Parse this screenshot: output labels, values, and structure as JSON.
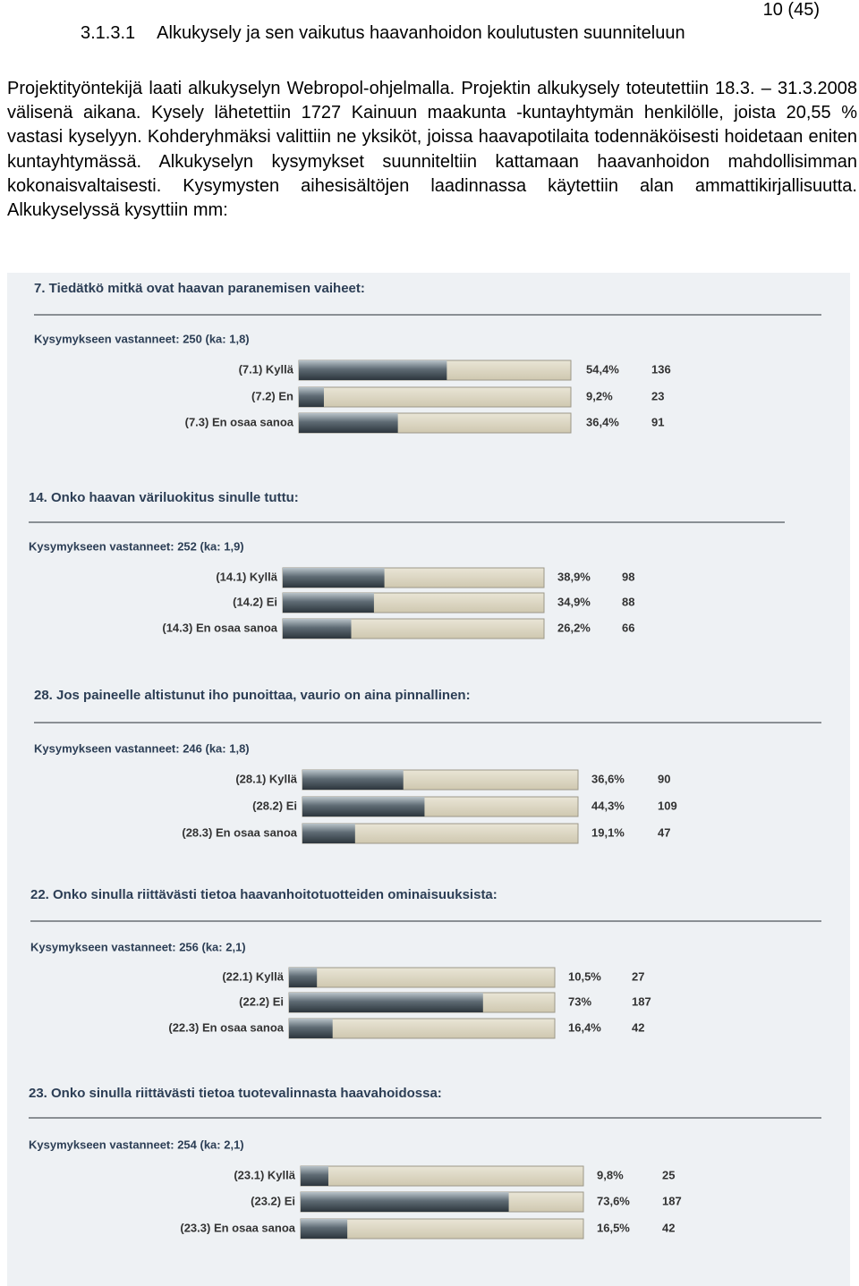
{
  "header": {
    "page_number": "10 (45)",
    "section_number": "3.1.3.1",
    "section_title": "Alkukysely ja sen vaikutus haavanhoidon koulutusten suunniteluun"
  },
  "paragraph": "Projektityöntekijä laati alkukyselyn Webropol-ohjelmalla. Projektin alkukysely toteutettiin 18.3. – 31.3.2008 välisenä aikana. Kysely lähetettiin 1727 Kainuun maakunta -kuntayhtymän henkilölle, joista 20,55 % vastasi kyselyyn. Kohderyhmäksi valittiin ne yksiköt, joissa haavapotilaita todennäköisesti hoidetaan eniten kuntayhtymässä. Alkukyselyn kysymykset suunniteltiin kattamaan haavanhoidon mahdollisimman kokonaisvaltaisesti. Kysymysten aihesisältöjen laadinnassa käytettiin alan ammattikirjallisuutta. Alkukyselyssä kysyttiin mm:",
  "questions": [
    {
      "title": "7. Tiedätkö mitkä ovat haavan paranemisen vaiheet:",
      "respondents": "Kysymykseen vastanneet: 250 (ka: 1,8)",
      "options": [
        {
          "label": "(7.1) Kyllä",
          "percent": 54.4,
          "percent_label": "54,4%",
          "count": 136
        },
        {
          "label": "(7.2) En",
          "percent": 9.2,
          "percent_label": "9,2%",
          "count": 23
        },
        {
          "label": "(7.3) En osaa sanoa",
          "percent": 36.4,
          "percent_label": "36,4%",
          "count": 91
        }
      ]
    },
    {
      "title": "14. Onko haavan väriluokitus sinulle tuttu:",
      "respondents": "Kysymykseen vastanneet: 252 (ka: 1,9)",
      "options": [
        {
          "label": "(14.1) Kyllä",
          "percent": 38.9,
          "percent_label": "38,9%",
          "count": 98
        },
        {
          "label": "(14.2) Ei",
          "percent": 34.9,
          "percent_label": "34,9%",
          "count": 88
        },
        {
          "label": "(14.3) En osaa sanoa",
          "percent": 26.2,
          "percent_label": "26,2%",
          "count": 66
        }
      ]
    },
    {
      "title": "28. Jos paineelle altistunut iho punoittaa, vaurio on aina pinnallinen:",
      "respondents": "Kysymykseen vastanneet: 246 (ka: 1,8)",
      "options": [
        {
          "label": "(28.1) Kyllä",
          "percent": 36.6,
          "percent_label": "36,6%",
          "count": 90
        },
        {
          "label": "(28.2) Ei",
          "percent": 44.3,
          "percent_label": "44,3%",
          "count": 109
        },
        {
          "label": "(28.3) En osaa sanoa",
          "percent": 19.1,
          "percent_label": "19,1%",
          "count": 47
        }
      ]
    },
    {
      "title": "22. Onko sinulla riittävästi tietoa haavanhoitotuotteiden ominaisuuksista:",
      "respondents": "Kysymykseen vastanneet: 256 (ka: 2,1)",
      "options": [
        {
          "label": "(22.1) Kyllä",
          "percent": 10.5,
          "percent_label": "10,5%",
          "count": 27
        },
        {
          "label": "(22.2) Ei",
          "percent": 73,
          "percent_label": "73%",
          "count": 187
        },
        {
          "label": "(22.3) En osaa sanoa",
          "percent": 16.4,
          "percent_label": "16,4%",
          "count": 42
        }
      ]
    },
    {
      "title": "23. Onko sinulla riittävästi tietoa tuotevalinnasta haavahoidossa:",
      "respondents": "Kysymykseen vastanneet: 254 (ka: 2,1)",
      "options": [
        {
          "label": "(23.1) Kyllä",
          "percent": 9.8,
          "percent_label": "9,8%",
          "count": 25
        },
        {
          "label": "(23.2) Ei",
          "percent": 73.6,
          "percent_label": "73,6%",
          "count": 187
        },
        {
          "label": "(23.3) En osaa sanoa",
          "percent": 16.5,
          "percent_label": "16,5%",
          "count": 42
        }
      ]
    }
  ]
}
